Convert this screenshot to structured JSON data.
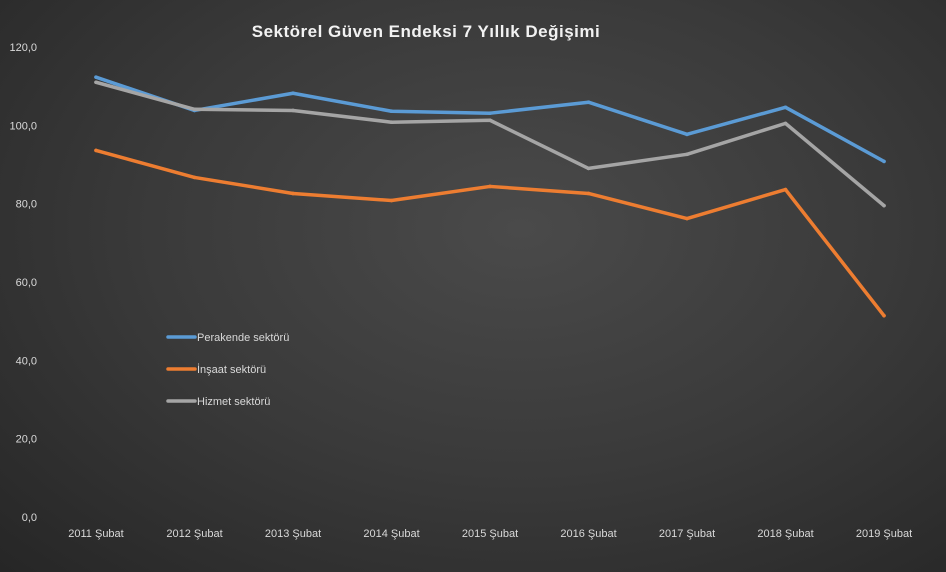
{
  "chart_data": {
    "type": "line",
    "title": "Sektörel Güven Endeksi 7 Yıllık Değişimi",
    "xlabel": "",
    "ylabel": "",
    "ylim": [
      0,
      120
    ],
    "yticks": [
      "0,0",
      "20,0",
      "40,0",
      "60,0",
      "80,0",
      "100,0",
      "120,0"
    ],
    "grid": false,
    "legend_placement": "center-left",
    "categories": [
      "2011 Şubat",
      "2012 Şubat",
      "2013 Şubat",
      "2014 Şubat",
      "2015 Şubat",
      "2016 Şubat",
      "2017 Şubat",
      "2018 Şubat",
      "2019 Şubat"
    ],
    "series": [
      {
        "name": "Perakende sektörü",
        "color": "#5b9bd5",
        "values": [
          112.3,
          103.8,
          108.2,
          103.6,
          103.1,
          105.9,
          97.7,
          104.6,
          90.8
        ]
      },
      {
        "name": "İnşaat sektörü",
        "color": "#ed7d31",
        "values": [
          93.6,
          86.7,
          82.6,
          80.8,
          84.4,
          82.6,
          76.2,
          83.6,
          51.4
        ]
      },
      {
        "name": "Hizmet sektörü",
        "color": "#a5a5a5",
        "values": [
          111.0,
          104.1,
          103.8,
          100.8,
          101.3,
          89.0,
          92.6,
          100.5,
          79.5
        ]
      }
    ]
  }
}
